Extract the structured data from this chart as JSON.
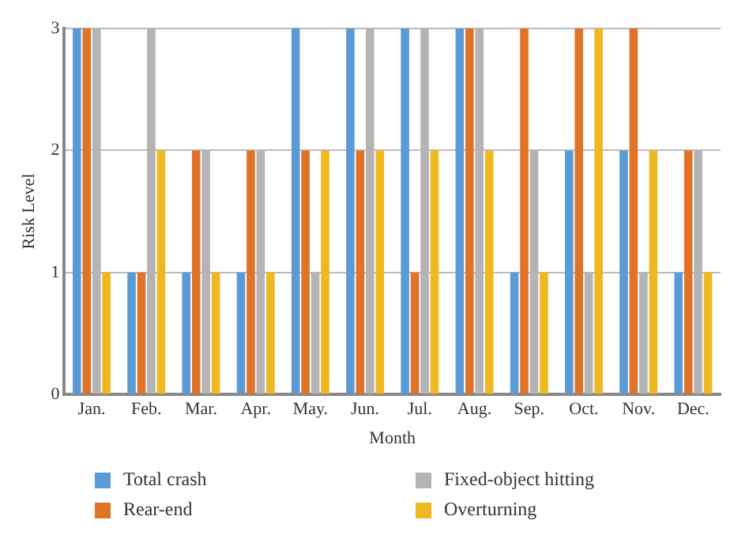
{
  "chart_data": {
    "type": "bar",
    "xlabel": "Month",
    "ylabel": "Risk Level",
    "categories": [
      "Jan.",
      "Feb.",
      "Mar.",
      "Apr.",
      "May.",
      "Jun.",
      "Jul.",
      "Aug.",
      "Sep.",
      "Oct.",
      "Nov.",
      "Dec."
    ],
    "series": [
      {
        "name": "Total crash",
        "color": "#5b9bd5",
        "values": [
          3,
          1,
          1,
          1,
          3,
          3,
          3,
          3,
          1,
          2,
          2,
          1
        ]
      },
      {
        "name": "Rear-end",
        "color": "#e07328",
        "values": [
          3,
          1,
          2,
          2,
          2,
          2,
          1,
          3,
          3,
          3,
          3,
          2
        ]
      },
      {
        "name": "Fixed-object hitting",
        "color": "#b4b4b4",
        "values": [
          3,
          3,
          2,
          2,
          1,
          3,
          3,
          3,
          2,
          1,
          1,
          2
        ]
      },
      {
        "name": "Overturning",
        "color": "#edb820",
        "values": [
          1,
          2,
          1,
          1,
          2,
          2,
          2,
          2,
          1,
          3,
          2,
          1
        ]
      }
    ],
    "ylim": [
      0,
      3
    ],
    "yticks": [
      0,
      1,
      2,
      3
    ],
    "grid": "y",
    "legend": "bottom"
  }
}
